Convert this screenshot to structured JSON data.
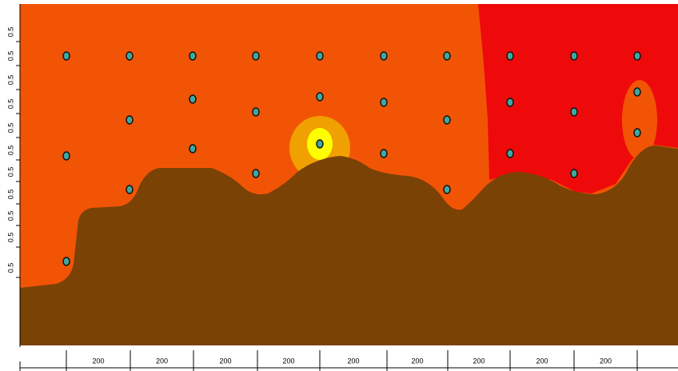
{
  "left_scale": {
    "labels": [
      "0.5",
      "0.5",
      "0.5",
      "0.5",
      "0.5",
      "0.5",
      "0.5",
      "0.5",
      "0.5",
      "0.5",
      "0.5"
    ]
  },
  "bottom_dimensions": {
    "labels": [
      "200",
      "200",
      "200",
      "200",
      "200",
      "200",
      "200",
      "200",
      "200"
    ]
  }
}
